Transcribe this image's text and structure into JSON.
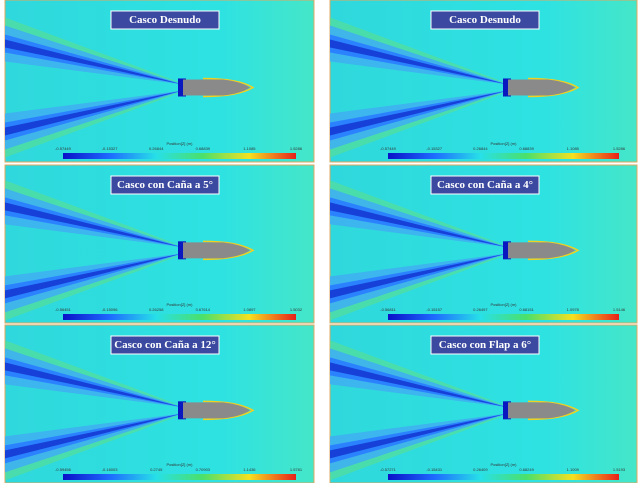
{
  "panels": [
    {
      "title": "Casco Desnudo",
      "colorbar": {
        "label": "Position[Z] (m)",
        "ticks": [
          "-0.57449",
          "-0.15327",
          "0.26844",
          "0.68839",
          "1.1085",
          "1.5286"
        ]
      }
    },
    {
      "title": "Casco Desnudo",
      "colorbar": {
        "label": "Position[Z] (m)",
        "ticks": [
          "-0.57449",
          "-0.15327",
          "0.26844",
          "0.68839",
          "1.1085",
          "1.5286"
        ]
      }
    },
    {
      "title": "Casco con Caña  a 5°",
      "colorbar": {
        "label": "Position[Z] (m)",
        "ticks": [
          "-0.56451",
          "-0.15096",
          "0.26258",
          "0.67614",
          "1.0897",
          "1.5032"
        ]
      }
    },
    {
      "title": "Casco con Caña  a 4°",
      "colorbar": {
        "label": "Position[Z] (m)",
        "ticks": [
          "-0.56811",
          "-0.15157",
          "0.26497",
          "0.68151",
          "1.0978",
          "1.5146"
        ]
      }
    },
    {
      "title": "Casco con Caña  a 12°",
      "colorbar": {
        "label": "Position[Z] (m)",
        "ticks": [
          "-0.59456",
          "-0.16003",
          "0.2745",
          "0.70903",
          "1.1436",
          "1.5781"
        ]
      }
    },
    {
      "title": "Casco con Flap  a 6°",
      "colorbar": {
        "label": "Position[Z] (m)",
        "ticks": [
          "-0.57271",
          "-0.15431",
          "0.26409",
          "0.68249",
          "1.1009",
          "1.5193"
        ]
      }
    }
  ]
}
